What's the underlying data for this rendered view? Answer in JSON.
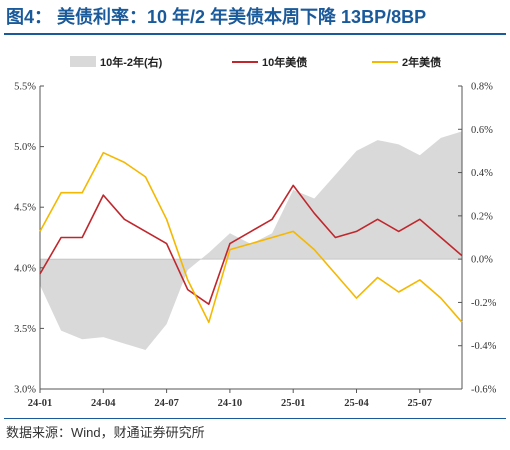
{
  "header": {
    "title": "图4：  美债利率：10 年/2 年美债本周下降 13BP/8BP"
  },
  "footer": {
    "source": "数据来源：Wind，财通证券研究所"
  },
  "chart_data": {
    "type": "line",
    "title": "美债利率：10 年/2 年美债本周下降 13BP/8BP",
    "legend_position": "top",
    "x": [
      "24-01",
      "24-02",
      "24-03",
      "24-04",
      "24-05",
      "24-06",
      "24-07",
      "24-08",
      "24-09",
      "24-10",
      "24-11",
      "24-12",
      "25-01",
      "25-02",
      "25-03",
      "25-04",
      "25-05",
      "25-06",
      "25-07",
      "25-08",
      "25-09"
    ],
    "xticks": [
      "24-01",
      "24-04",
      "24-07",
      "24-10",
      "25-01",
      "25-04",
      "25-07"
    ],
    "left_axis": {
      "ticks": [
        "5.5%",
        "5.0%",
        "4.5%",
        "4.0%",
        "3.5%",
        "3.0%"
      ],
      "range": [
        3.0,
        5.5
      ]
    },
    "right_axis": {
      "ticks": [
        "0.8%",
        "0.6%",
        "0.4%",
        "0.2%",
        "0.0%",
        "-0.2%",
        "-0.4%",
        "-0.6%"
      ],
      "range": [
        -0.6,
        0.8
      ]
    },
    "series": [
      {
        "name": "10年-2年(右)",
        "kind": "area",
        "axis": "right",
        "color": "#d9d9d9",
        "values": [
          -0.12,
          -0.33,
          -0.37,
          -0.36,
          -0.39,
          -0.42,
          -0.3,
          -0.05,
          0.03,
          0.12,
          0.07,
          0.12,
          0.32,
          0.28,
          0.39,
          0.5,
          0.55,
          0.53,
          0.48,
          0.56,
          0.59
        ]
      },
      {
        "name": "10年美债",
        "kind": "line",
        "axis": "left",
        "color": "#c0272d",
        "values": [
          3.95,
          4.25,
          4.25,
          4.6,
          4.4,
          4.3,
          4.2,
          3.82,
          3.7,
          4.2,
          4.3,
          4.4,
          4.68,
          4.45,
          4.25,
          4.3,
          4.4,
          4.3,
          4.4,
          4.25,
          4.1
        ]
      },
      {
        "name": "2年美债",
        "kind": "line",
        "axis": "left",
        "color": "#f5b800",
        "values": [
          4.3,
          4.62,
          4.62,
          4.95,
          4.87,
          4.75,
          4.4,
          3.9,
          3.55,
          4.15,
          4.2,
          4.25,
          4.3,
          4.15,
          3.95,
          3.75,
          3.92,
          3.8,
          3.9,
          3.75,
          3.55
        ]
      }
    ]
  }
}
